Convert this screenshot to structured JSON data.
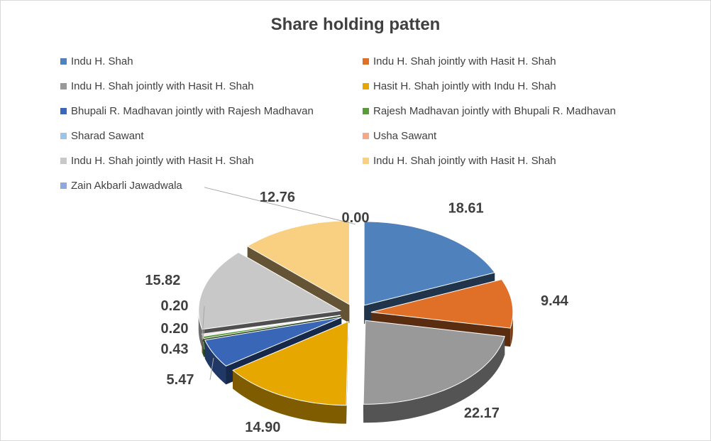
{
  "chart_data": {
    "type": "pie",
    "title": "Share holding patten",
    "legend_position": "top",
    "style": "3d-exploded",
    "series": [
      {
        "label": "Indu H. Shah",
        "value": 18.61,
        "color": "#4f81bd",
        "display": "18.61"
      },
      {
        "label": "Indu H. Shah jointly with Hasit H. Shah",
        "value": 9.44,
        "color": "#e07028",
        "display": "9.44"
      },
      {
        "label": "Indu H. Shah jointly with Hasit H. Shah",
        "value": 22.17,
        "color": "#999999",
        "display": "22.17"
      },
      {
        "label": "Hasit H. Shah jointly with Indu H. Shah",
        "value": 14.9,
        "color": "#e6a800",
        "display": "14.90"
      },
      {
        "label": "Bhupali R. Madhavan jointly with Rajesh Madhavan",
        "value": 5.47,
        "color": "#3a66b8",
        "display": "5.47"
      },
      {
        "label": "Rajesh Madhavan jointly with Bhupali R. Madhavan",
        "value": 0.43,
        "color": "#5a9a3a",
        "display": "0.43"
      },
      {
        "label": "Sharad Sawant",
        "value": 0.2,
        "color": "#9dc3e6",
        "display": "0.20"
      },
      {
        "label": "Usha Sawant",
        "value": 0.2,
        "color": "#f4a98a",
        "display": "0.20"
      },
      {
        "label": "Indu H. Shah jointly with Hasit H. Shah",
        "value": 15.82,
        "color": "#c8c8c8",
        "display": "15.82"
      },
      {
        "label": "Indu H. Shah jointly with Hasit H. Shah",
        "value": 12.76,
        "color": "#f9cf82",
        "display": "12.76"
      },
      {
        "label": "Zain Akbarli Jawadwala",
        "value": 0.0,
        "color": "#8ea9db",
        "display": "0.00"
      }
    ]
  }
}
